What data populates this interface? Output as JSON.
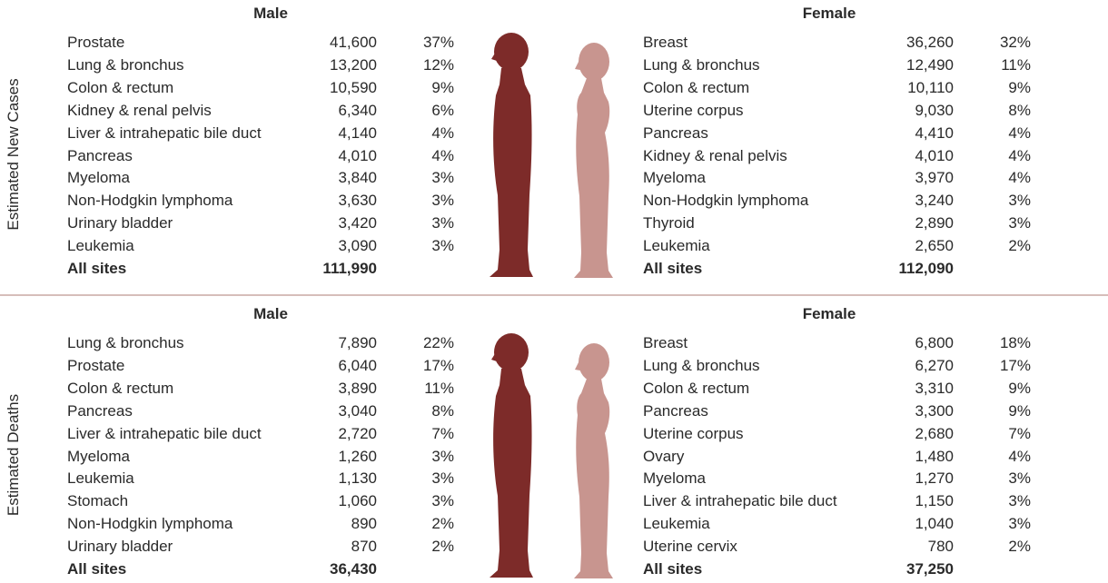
{
  "sections": [
    {
      "label": "Estimated New Cases",
      "male": {
        "title": "Male",
        "rows": [
          [
            "Prostate",
            "41,600",
            "37%"
          ],
          [
            "Lung & bronchus",
            "13,200",
            "12%"
          ],
          [
            "Colon & rectum",
            "10,590",
            "9%"
          ],
          [
            "Kidney & renal pelvis",
            "6,340",
            "6%"
          ],
          [
            "Liver & intrahepatic bile duct",
            "4,140",
            "4%"
          ],
          [
            "Pancreas",
            "4,010",
            "4%"
          ],
          [
            "Myeloma",
            "3,840",
            "3%"
          ],
          [
            "Non-Hodgkin lymphoma",
            "3,630",
            "3%"
          ],
          [
            "Urinary bladder",
            "3,420",
            "3%"
          ],
          [
            "Leukemia",
            "3,090",
            "3%"
          ]
        ],
        "total": [
          "All sites",
          "111,990"
        ]
      },
      "female": {
        "title": "Female",
        "rows": [
          [
            "Breast",
            "36,260",
            "32%"
          ],
          [
            "Lung & bronchus",
            "12,490",
            "11%"
          ],
          [
            "Colon & rectum",
            "10,110",
            "9%"
          ],
          [
            "Uterine corpus",
            "9,030",
            "8%"
          ],
          [
            "Pancreas",
            "4,410",
            "4%"
          ],
          [
            "Kidney & renal pelvis",
            "4,010",
            "4%"
          ],
          [
            "Myeloma",
            "3,970",
            "4%"
          ],
          [
            "Non-Hodgkin lymphoma",
            "3,240",
            "3%"
          ],
          [
            "Thyroid",
            "2,890",
            "3%"
          ],
          [
            "Leukemia",
            "2,650",
            "2%"
          ]
        ],
        "total": [
          "All sites",
          "112,090"
        ]
      }
    },
    {
      "label": "Estimated Deaths",
      "male": {
        "title": "Male",
        "rows": [
          [
            "Lung & bronchus",
            "7,890",
            "22%"
          ],
          [
            "Prostate",
            "6,040",
            "17%"
          ],
          [
            "Colon & rectum",
            "3,890",
            "11%"
          ],
          [
            "Pancreas",
            "3,040",
            "8%"
          ],
          [
            "Liver & intrahepatic bile duct",
            "2,720",
            "7%"
          ],
          [
            "Myeloma",
            "1,260",
            "3%"
          ],
          [
            "Leukemia",
            "1,130",
            "3%"
          ],
          [
            "Stomach",
            "1,060",
            "3%"
          ],
          [
            "Non-Hodgkin lymphoma",
            "890",
            "2%"
          ],
          [
            "Urinary bladder",
            "870",
            "2%"
          ]
        ],
        "total": [
          "All sites",
          "36,430"
        ]
      },
      "female": {
        "title": "Female",
        "rows": [
          [
            "Breast",
            "6,800",
            "18%"
          ],
          [
            "Lung & bronchus",
            "6,270",
            "17%"
          ],
          [
            "Colon & rectum",
            "3,310",
            "9%"
          ],
          [
            "Pancreas",
            "3,300",
            "9%"
          ],
          [
            "Uterine corpus",
            "2,680",
            "7%"
          ],
          [
            "Ovary",
            "1,480",
            "4%"
          ],
          [
            "Myeloma",
            "1,270",
            "3%"
          ],
          [
            "Liver & intrahepatic bile duct",
            "1,150",
            "3%"
          ],
          [
            "Leukemia",
            "1,040",
            "3%"
          ],
          [
            "Uterine cervix",
            "780",
            "2%"
          ]
        ],
        "total": [
          "All sites",
          "37,250"
        ]
      }
    }
  ]
}
